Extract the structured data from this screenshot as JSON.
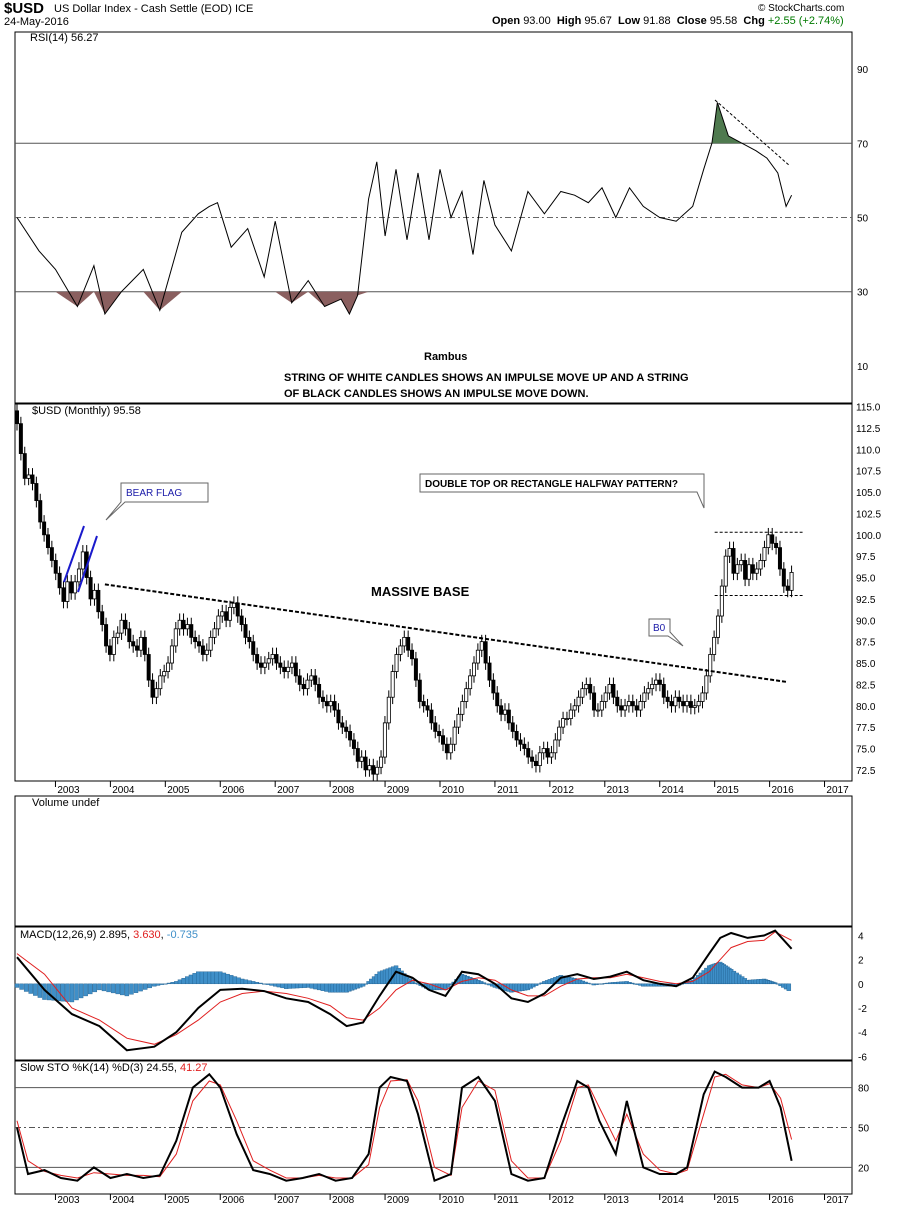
{
  "header": {
    "symbol": "$USD",
    "description": "US Dollar Index - Cash Settle (EOD) ICE",
    "date": "24-May-2016",
    "open_label": "Open",
    "open": "93.00",
    "high_label": "High",
    "high": "95.67",
    "low_label": "Low",
    "low": "91.88",
    "close_label": "Close",
    "close": "95.58",
    "chg_label": "Chg",
    "chg": "+2.55 (+2.74%)",
    "brand": "© StockCharts.com"
  },
  "colors": {
    "up": "#ffffff",
    "down": "#000000",
    "rsi_over": "#4f7a4f",
    "rsi_under": "#8a5f5f",
    "macd_hist": "#3f8fc8",
    "signal": "#e02020",
    "macd": "#000000"
  },
  "chart_data": [
    {
      "type": "line",
      "panel": "rsi",
      "title": "RSI(14) 56.27",
      "y_ticks": [
        10,
        30,
        50,
        70,
        90
      ],
      "ylim": [
        0,
        100
      ],
      "reference_lines": [
        30,
        50,
        70
      ],
      "annotations": [
        "Rambus",
        "STRING OF WHITE CANDLES SHOWS AN IMPULSE MOVE UP AND A STRING",
        "OF BLACK CANDLES SHOWS AN IMPULSE MOVE DOWN."
      ],
      "x": [
        2002.3,
        2002.7,
        2003.0,
        2003.4,
        2003.7,
        2003.9,
        2004.2,
        2004.6,
        2004.9,
        2005.3,
        2005.6,
        2005.8,
        2005.95,
        2006.2,
        2006.5,
        2006.8,
        2007.0,
        2007.3,
        2007.6,
        2007.9,
        2008.2,
        2008.35,
        2008.5,
        2008.7,
        2008.85,
        2009.0,
        2009.2,
        2009.4,
        2009.6,
        2009.8,
        2010.0,
        2010.2,
        2010.4,
        2010.6,
        2010.8,
        2011.0,
        2011.3,
        2011.6,
        2011.9,
        2012.2,
        2012.45,
        2012.7,
        2012.95,
        2013.2,
        2013.45,
        2013.7,
        2014.0,
        2014.3,
        2014.6,
        2014.8,
        2014.95,
        2015.05,
        2015.25,
        2015.5,
        2015.75,
        2015.95,
        2016.15,
        2016.3,
        2016.4
      ],
      "values": [
        50,
        41,
        36,
        26,
        37,
        24,
        30,
        36,
        25,
        46,
        51,
        53,
        54,
        42,
        47,
        34,
        49,
        27,
        33,
        26,
        28,
        24,
        29,
        55,
        65,
        45,
        63,
        44,
        62,
        44,
        63,
        50,
        57,
        40,
        60,
        48,
        41,
        57,
        51,
        57,
        56,
        54,
        58,
        50,
        58,
        53,
        50,
        49,
        53,
        63,
        70,
        81,
        72,
        70,
        68,
        66,
        62,
        53,
        56
      ]
    },
    {
      "type": "candlestick",
      "panel": "price",
      "title": "$USD (Monthly) 95.58",
      "y_ticks": [
        72.5,
        75.0,
        77.5,
        80.0,
        82.5,
        85.0,
        87.5,
        90.0,
        92.5,
        95.0,
        97.5,
        100.0,
        102.5,
        105.0,
        107.5,
        110.0,
        112.5,
        115.0
      ],
      "ylim": [
        71.2,
        115.3
      ],
      "x_ticks": [
        "2003",
        "2004",
        "2005",
        "2006",
        "2007",
        "2008",
        "2009",
        "2010",
        "2011",
        "2012",
        "2013",
        "2014",
        "2015",
        "2016",
        "2017"
      ],
      "x_range": [
        2002.3,
        2017.5
      ],
      "annotations": [
        "BEAR FLAG",
        "MASSIVE BASE",
        "DOUBLE TOP OR RECTANGLE HALFWAY PATTERN?",
        "B0"
      ],
      "trendline": {
        "from": [
          2003.9,
          94.2
        ],
        "to": [
          2016.3,
          82.8
        ]
      },
      "rectangle": {
        "top": 100.3,
        "bottom": 92.9,
        "from": 2015.0,
        "to": 2016.6
      },
      "closes": [
        113.0,
        109.5,
        106.6,
        107.0,
        106.0,
        104.0,
        101.5,
        100.0,
        98.5,
        97.0,
        95.5,
        93.8,
        92.2,
        94.5,
        93.2,
        94.5,
        96.0,
        98.0,
        95.0,
        92.5,
        93.5,
        91.0,
        89.5,
        87.0,
        86.0,
        88.0,
        88.5,
        90.0,
        89.0,
        87.5,
        87.0,
        86.5,
        88.0,
        86.0,
        83.0,
        81.0,
        82.0,
        83.5,
        84.0,
        85.0,
        87.0,
        89.0,
        90.0,
        89.0,
        89.5,
        88.0,
        87.5,
        87.0,
        86.0,
        86.5,
        88.0,
        89.0,
        90.5,
        91.0,
        90.0,
        91.5,
        92.0,
        90.5,
        89.5,
        88.0,
        87.5,
        86.0,
        85.0,
        84.5,
        85.0,
        85.5,
        86.0,
        85.0,
        84.5,
        84.0,
        84.5,
        85.0,
        83.5,
        82.5,
        82.0,
        83.0,
        83.5,
        82.5,
        81.0,
        80.5,
        80.0,
        80.5,
        79.5,
        78.0,
        77.5,
        77.0,
        76.0,
        75.0,
        73.5,
        74.0,
        72.5,
        73.0,
        72.0,
        72.8,
        74.0,
        78.0,
        81.0,
        84.0,
        86.0,
        87.0,
        88.0,
        86.5,
        85.5,
        83.0,
        80.5,
        80.0,
        79.5,
        78.0,
        77.0,
        76.5,
        75.5,
        74.5,
        75.5,
        77.5,
        79.0,
        80.5,
        82.0,
        83.5,
        85.0,
        86.5,
        87.5,
        85.0,
        83.0,
        81.5,
        80.0,
        79.0,
        79.5,
        78.0,
        77.0,
        76.0,
        75.5,
        75.0,
        74.0,
        73.5,
        73.0,
        74.5,
        75.0,
        74.0,
        74.5,
        76.0,
        77.5,
        78.5,
        78.5,
        79.5,
        80.0,
        81.0,
        82.0,
        82.5,
        81.5,
        79.5,
        79.5,
        80.5,
        81.5,
        82.5,
        81.0,
        80.0,
        79.5,
        80.0,
        80.5,
        80.0,
        79.5,
        80.5,
        81.5,
        82.0,
        82.5,
        83.0,
        82.5,
        81.0,
        80.5,
        80.0,
        81.0,
        80.5,
        80.0,
        80.5,
        79.8,
        80.0,
        80.5,
        81.5,
        83.5,
        86.0,
        88.0,
        90.5,
        94.0,
        97.5,
        98.4,
        95.5,
        96.5,
        97.0,
        94.8,
        96.5,
        95.5,
        96.0,
        97.0,
        98.5,
        100.0,
        99.0,
        98.5,
        96.0,
        94.0,
        93.5,
        95.6
      ]
    },
    {
      "type": "bar",
      "panel": "volume",
      "title": "Volume undef"
    },
    {
      "type": "line",
      "panel": "macd",
      "title": "MACD(12,26,9)",
      "values_label": [
        "2.895",
        "3.630",
        "-0.735"
      ],
      "y_ticks": [
        -6,
        -4,
        -2,
        0,
        2,
        4
      ],
      "ylim": [
        -6.3,
        4.7
      ],
      "x": [
        2002.3,
        2002.8,
        2003.3,
        2003.8,
        2004.3,
        2004.8,
        2005.2,
        2005.6,
        2006.0,
        2006.4,
        2006.8,
        2007.2,
        2007.6,
        2008.0,
        2008.3,
        2008.6,
        2008.9,
        2009.2,
        2009.5,
        2009.8,
        2010.1,
        2010.4,
        2010.7,
        2011.0,
        2011.3,
        2011.6,
        2011.9,
        2012.2,
        2012.5,
        2012.8,
        2013.1,
        2013.4,
        2013.7,
        2014.0,
        2014.3,
        2014.6,
        2014.9,
        2015.1,
        2015.3,
        2015.6,
        2015.9,
        2016.1,
        2016.4
      ],
      "macd": [
        2.2,
        -0.5,
        -2.5,
        -3.5,
        -5.5,
        -5.2,
        -4.0,
        -2.0,
        -0.5,
        -0.4,
        -0.6,
        -1.2,
        -1.5,
        -2.5,
        -3.5,
        -3.2,
        -1.0,
        1.0,
        0.5,
        -0.5,
        -1.0,
        1.0,
        0.8,
        0.0,
        -1.2,
        -1.5,
        -0.8,
        0.5,
        0.8,
        0.4,
        0.6,
        1.0,
        0.3,
        0.0,
        -0.2,
        0.5,
        2.5,
        3.8,
        4.2,
        3.8,
        4.0,
        4.4,
        2.9
      ],
      "signal": [
        2.5,
        0.8,
        -2.0,
        -3.0,
        -4.5,
        -5.0,
        -4.2,
        -3.0,
        -1.5,
        -0.8,
        -0.6,
        -0.8,
        -1.2,
        -1.8,
        -2.8,
        -3.0,
        -2.0,
        -0.5,
        0.3,
        0.0,
        -0.5,
        0.2,
        0.5,
        0.3,
        -0.5,
        -1.0,
        -1.0,
        -0.2,
        0.4,
        0.5,
        0.5,
        0.8,
        0.5,
        0.2,
        0.0,
        0.2,
        1.0,
        2.0,
        3.0,
        3.5,
        3.6,
        4.3,
        3.6
      ],
      "histogram": [
        -0.3,
        -1.3,
        -1.5,
        -0.5,
        -1.0,
        -0.2,
        0.2,
        1.0,
        1.0,
        0.4,
        0.0,
        -0.4,
        -0.3,
        -0.7,
        -0.7,
        -0.2,
        1.0,
        1.5,
        0.2,
        -0.5,
        -0.5,
        0.8,
        0.3,
        -0.3,
        -0.7,
        -0.5,
        0.2,
        0.7,
        0.4,
        -0.1,
        0.1,
        0.2,
        -0.2,
        -0.2,
        -0.2,
        0.3,
        1.5,
        1.8,
        1.2,
        0.3,
        0.4,
        0.1,
        -0.7
      ]
    },
    {
      "type": "line",
      "panel": "stochastic",
      "title": "Slow STO %K(14) %D(3)",
      "values_label": [
        "24.55",
        "41.27"
      ],
      "y_ticks": [
        20,
        50,
        80
      ],
      "ylim": [
        0,
        100
      ],
      "reference_lines": [
        20,
        50,
        80
      ],
      "x_ticks": [
        "2003",
        "2004",
        "2005",
        "2006",
        "2007",
        "2008",
        "2009",
        "2010",
        "2011",
        "2012",
        "2013",
        "2014",
        "2015",
        "2016",
        "2017"
      ],
      "x": [
        2002.3,
        2002.5,
        2002.8,
        2003.1,
        2003.4,
        2003.7,
        2004.0,
        2004.3,
        2004.6,
        2004.9,
        2005.2,
        2005.5,
        2005.8,
        2006.0,
        2006.3,
        2006.6,
        2006.9,
        2007.2,
        2007.5,
        2007.8,
        2008.1,
        2008.4,
        2008.7,
        2008.9,
        2009.1,
        2009.4,
        2009.6,
        2009.9,
        2010.2,
        2010.4,
        2010.7,
        2011.0,
        2011.3,
        2011.6,
        2011.9,
        2012.2,
        2012.5,
        2012.7,
        2012.9,
        2013.2,
        2013.4,
        2013.7,
        2014.0,
        2014.3,
        2014.5,
        2014.8,
        2015.0,
        2015.2,
        2015.5,
        2015.8,
        2016.0,
        2016.2,
        2016.4
      ],
      "k": [
        50,
        15,
        18,
        12,
        10,
        20,
        12,
        15,
        12,
        14,
        40,
        80,
        90,
        80,
        45,
        18,
        15,
        10,
        12,
        15,
        10,
        12,
        30,
        80,
        88,
        85,
        60,
        10,
        15,
        80,
        88,
        70,
        15,
        10,
        12,
        50,
        85,
        80,
        55,
        30,
        70,
        20,
        15,
        15,
        20,
        75,
        92,
        88,
        80,
        80,
        85,
        65,
        25
      ],
      "d": [
        55,
        25,
        17,
        14,
        12,
        16,
        15,
        14,
        14,
        13,
        30,
        70,
        85,
        82,
        55,
        25,
        18,
        12,
        12,
        14,
        12,
        12,
        22,
        65,
        85,
        86,
        70,
        20,
        14,
        65,
        85,
        78,
        25,
        12,
        12,
        40,
        80,
        82,
        65,
        40,
        60,
        30,
        18,
        15,
        18,
        60,
        88,
        90,
        82,
        80,
        83,
        72,
        41
      ]
    }
  ]
}
